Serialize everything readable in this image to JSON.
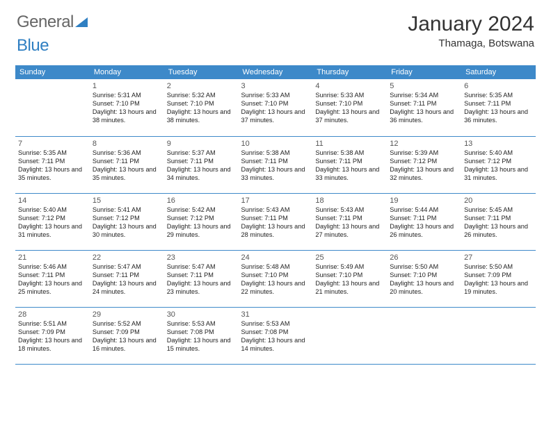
{
  "brand": {
    "part1": "General",
    "part2": "Blue"
  },
  "title": "January 2024",
  "location": "Thamaga, Botswana",
  "colors": {
    "header_bg": "#3d89c9",
    "header_text": "#ffffff",
    "border": "#3d89c9",
    "brand_blue": "#2f7fc2",
    "text": "#222222"
  },
  "day_headers": [
    "Sunday",
    "Monday",
    "Tuesday",
    "Wednesday",
    "Thursday",
    "Friday",
    "Saturday"
  ],
  "weeks": [
    [
      null,
      {
        "n": "1",
        "sr": "5:31 AM",
        "ss": "7:10 PM",
        "dl": "13 hours and 38 minutes."
      },
      {
        "n": "2",
        "sr": "5:32 AM",
        "ss": "7:10 PM",
        "dl": "13 hours and 38 minutes."
      },
      {
        "n": "3",
        "sr": "5:33 AM",
        "ss": "7:10 PM",
        "dl": "13 hours and 37 minutes."
      },
      {
        "n": "4",
        "sr": "5:33 AM",
        "ss": "7:10 PM",
        "dl": "13 hours and 37 minutes."
      },
      {
        "n": "5",
        "sr": "5:34 AM",
        "ss": "7:11 PM",
        "dl": "13 hours and 36 minutes."
      },
      {
        "n": "6",
        "sr": "5:35 AM",
        "ss": "7:11 PM",
        "dl": "13 hours and 36 minutes."
      }
    ],
    [
      {
        "n": "7",
        "sr": "5:35 AM",
        "ss": "7:11 PM",
        "dl": "13 hours and 35 minutes."
      },
      {
        "n": "8",
        "sr": "5:36 AM",
        "ss": "7:11 PM",
        "dl": "13 hours and 35 minutes."
      },
      {
        "n": "9",
        "sr": "5:37 AM",
        "ss": "7:11 PM",
        "dl": "13 hours and 34 minutes."
      },
      {
        "n": "10",
        "sr": "5:38 AM",
        "ss": "7:11 PM",
        "dl": "13 hours and 33 minutes."
      },
      {
        "n": "11",
        "sr": "5:38 AM",
        "ss": "7:11 PM",
        "dl": "13 hours and 33 minutes."
      },
      {
        "n": "12",
        "sr": "5:39 AM",
        "ss": "7:12 PM",
        "dl": "13 hours and 32 minutes."
      },
      {
        "n": "13",
        "sr": "5:40 AM",
        "ss": "7:12 PM",
        "dl": "13 hours and 31 minutes."
      }
    ],
    [
      {
        "n": "14",
        "sr": "5:40 AM",
        "ss": "7:12 PM",
        "dl": "13 hours and 31 minutes."
      },
      {
        "n": "15",
        "sr": "5:41 AM",
        "ss": "7:12 PM",
        "dl": "13 hours and 30 minutes."
      },
      {
        "n": "16",
        "sr": "5:42 AM",
        "ss": "7:12 PM",
        "dl": "13 hours and 29 minutes."
      },
      {
        "n": "17",
        "sr": "5:43 AM",
        "ss": "7:11 PM",
        "dl": "13 hours and 28 minutes."
      },
      {
        "n": "18",
        "sr": "5:43 AM",
        "ss": "7:11 PM",
        "dl": "13 hours and 27 minutes."
      },
      {
        "n": "19",
        "sr": "5:44 AM",
        "ss": "7:11 PM",
        "dl": "13 hours and 26 minutes."
      },
      {
        "n": "20",
        "sr": "5:45 AM",
        "ss": "7:11 PM",
        "dl": "13 hours and 26 minutes."
      }
    ],
    [
      {
        "n": "21",
        "sr": "5:46 AM",
        "ss": "7:11 PM",
        "dl": "13 hours and 25 minutes."
      },
      {
        "n": "22",
        "sr": "5:47 AM",
        "ss": "7:11 PM",
        "dl": "13 hours and 24 minutes."
      },
      {
        "n": "23",
        "sr": "5:47 AM",
        "ss": "7:11 PM",
        "dl": "13 hours and 23 minutes."
      },
      {
        "n": "24",
        "sr": "5:48 AM",
        "ss": "7:10 PM",
        "dl": "13 hours and 22 minutes."
      },
      {
        "n": "25",
        "sr": "5:49 AM",
        "ss": "7:10 PM",
        "dl": "13 hours and 21 minutes."
      },
      {
        "n": "26",
        "sr": "5:50 AM",
        "ss": "7:10 PM",
        "dl": "13 hours and 20 minutes."
      },
      {
        "n": "27",
        "sr": "5:50 AM",
        "ss": "7:09 PM",
        "dl": "13 hours and 19 minutes."
      }
    ],
    [
      {
        "n": "28",
        "sr": "5:51 AM",
        "ss": "7:09 PM",
        "dl": "13 hours and 18 minutes."
      },
      {
        "n": "29",
        "sr": "5:52 AM",
        "ss": "7:09 PM",
        "dl": "13 hours and 16 minutes."
      },
      {
        "n": "30",
        "sr": "5:53 AM",
        "ss": "7:08 PM",
        "dl": "13 hours and 15 minutes."
      },
      {
        "n": "31",
        "sr": "5:53 AM",
        "ss": "7:08 PM",
        "dl": "13 hours and 14 minutes."
      },
      null,
      null,
      null
    ]
  ],
  "labels": {
    "sunrise": "Sunrise: ",
    "sunset": "Sunset: ",
    "daylight": "Daylight: "
  }
}
